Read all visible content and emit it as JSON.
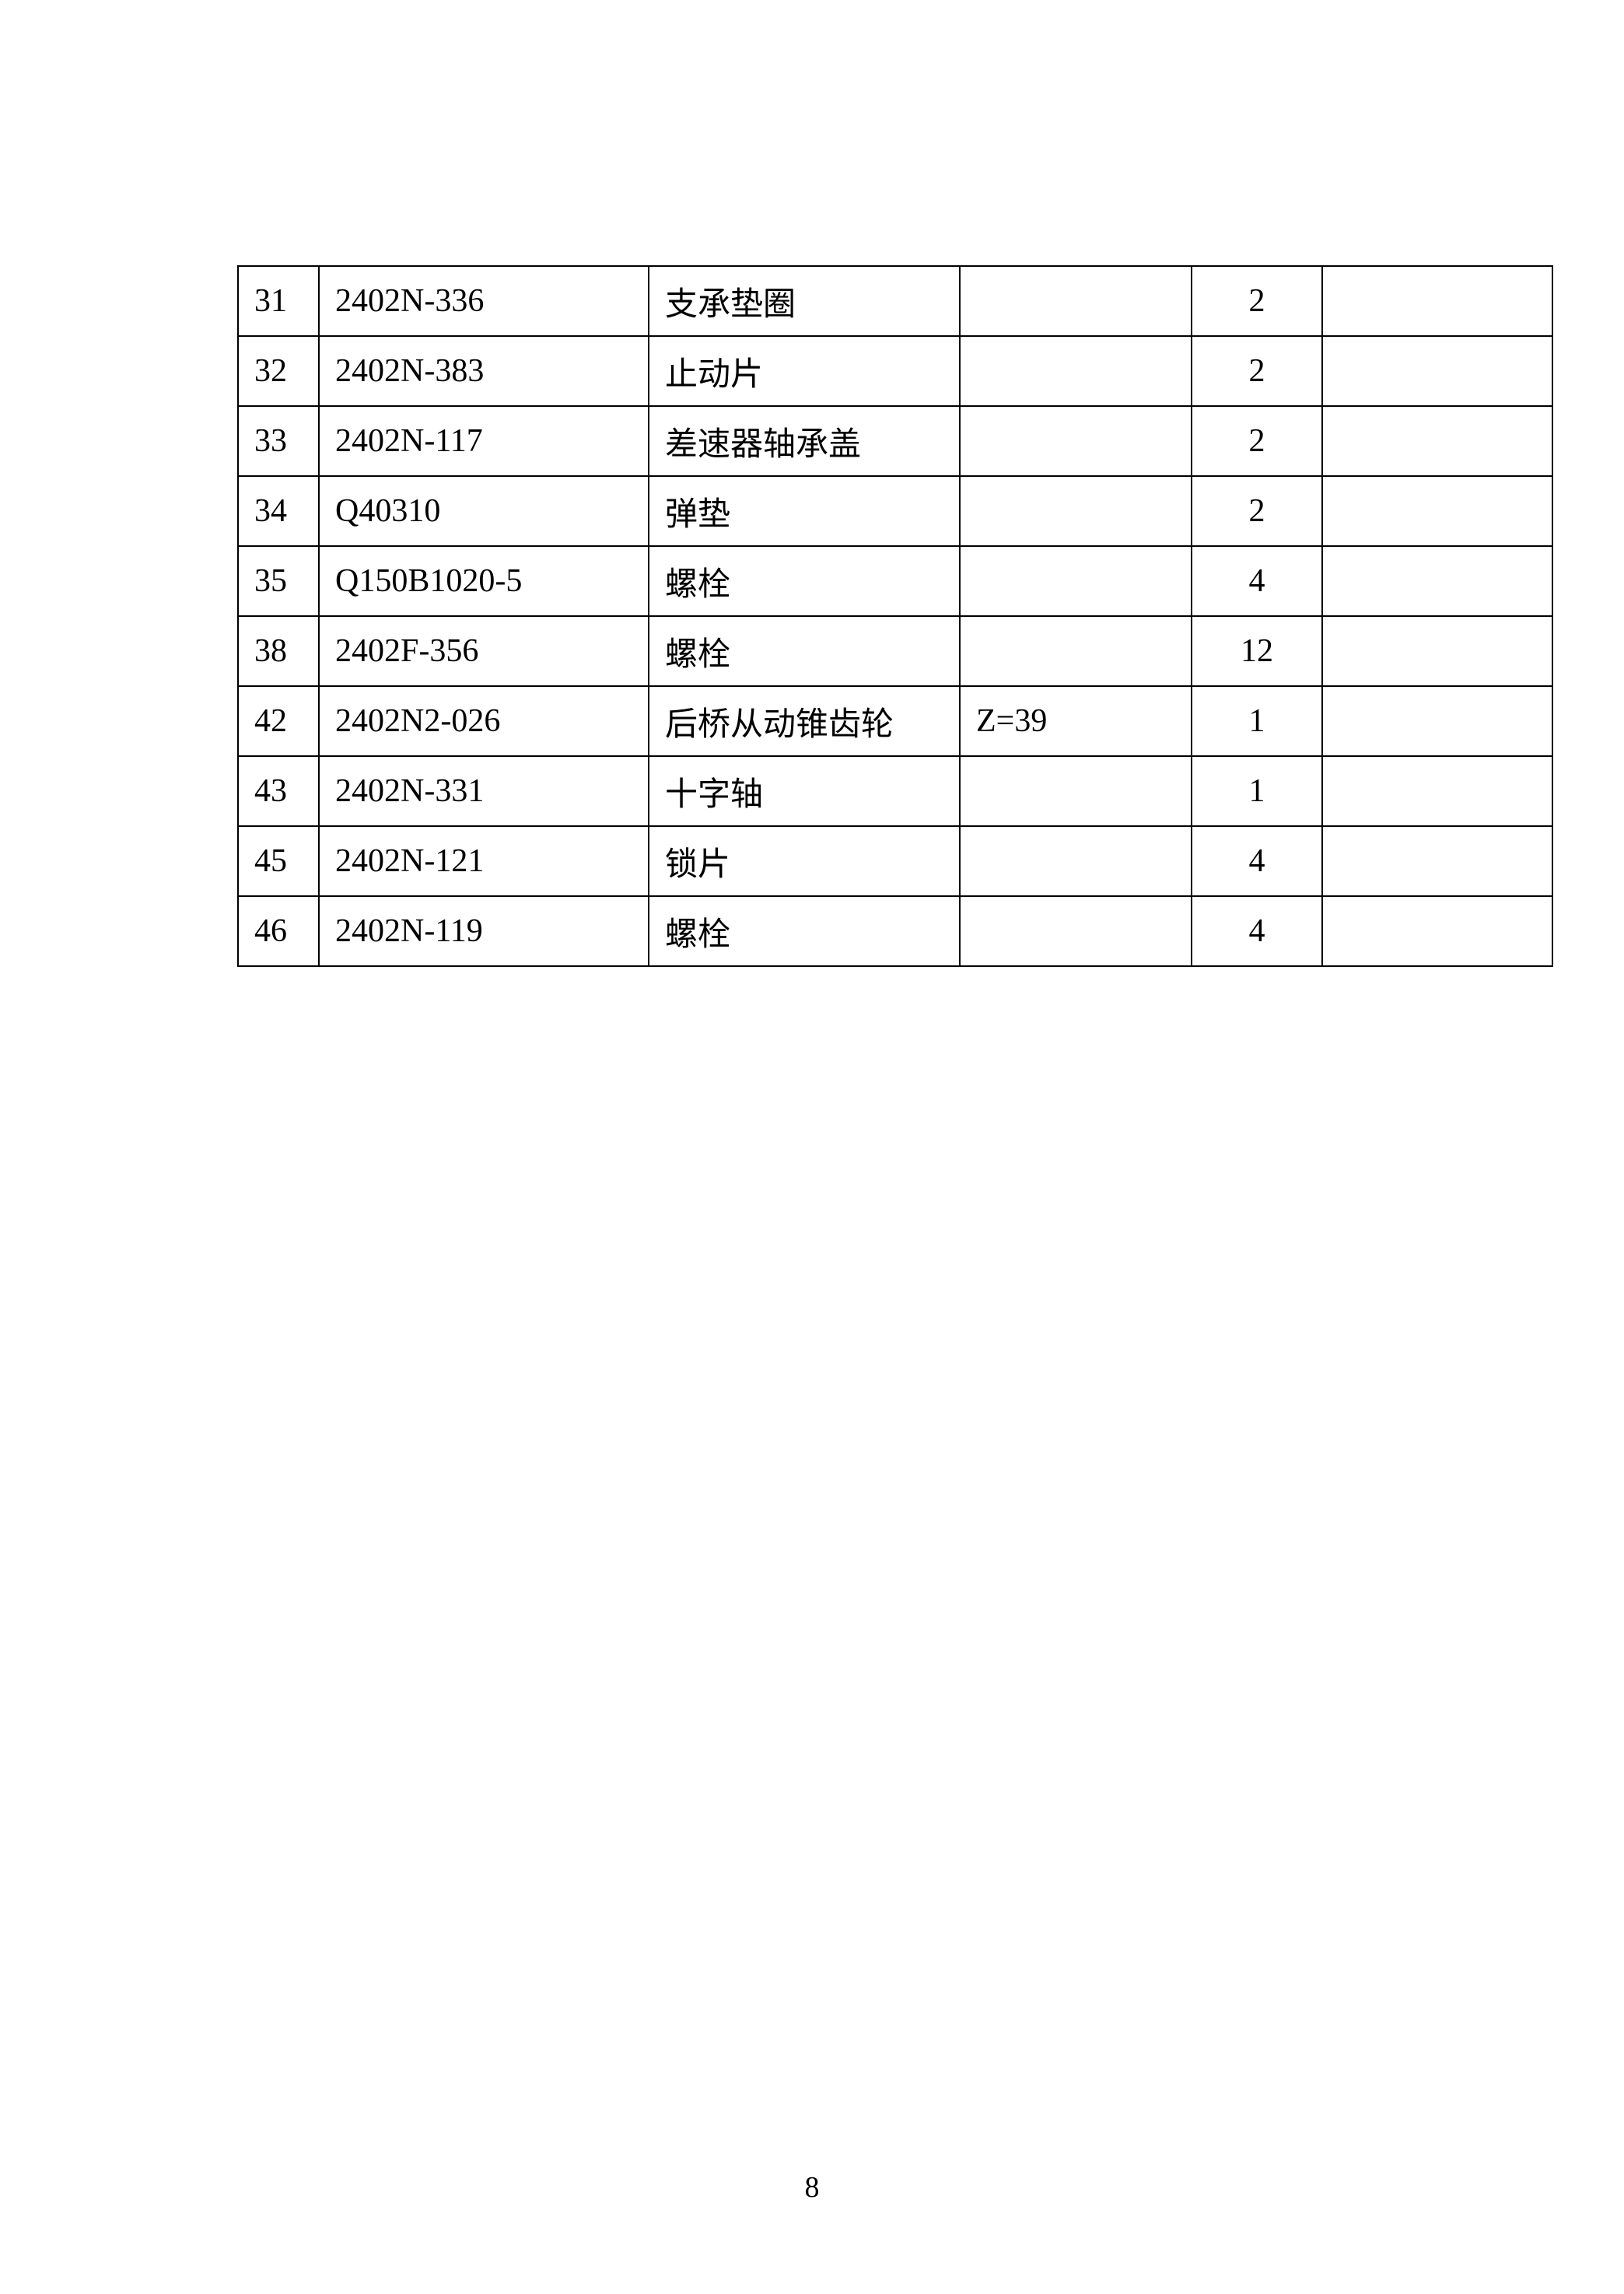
{
  "parts_table": {
    "rows": [
      {
        "no": "31",
        "code": "2402N-336",
        "name": "支承垫圈",
        "note": "",
        "qty": "2",
        "remark": ""
      },
      {
        "no": "32",
        "code": "2402N-383",
        "name": "止动片",
        "note": "",
        "qty": "2",
        "remark": ""
      },
      {
        "no": "33",
        "code": "2402N-117",
        "name": "差速器轴承盖",
        "note": "",
        "qty": "2",
        "remark": ""
      },
      {
        "no": "34",
        "code": "Q40310",
        "name": "弹垫",
        "note": "",
        "qty": "2",
        "remark": ""
      },
      {
        "no": "35",
        "code": "Q150B1020-5",
        "name": "螺栓",
        "note": "",
        "qty": "4",
        "remark": ""
      },
      {
        "no": "38",
        "code": "2402F-356",
        "name": "螺栓",
        "note": "",
        "qty": "12",
        "remark": ""
      },
      {
        "no": "42",
        "code": "2402N2-026",
        "name": "后桥从动锥齿轮",
        "note": "Z=39",
        "qty": "1",
        "remark": ""
      },
      {
        "no": "43",
        "code": "2402N-331",
        "name": "十字轴",
        "note": "",
        "qty": "1",
        "remark": ""
      },
      {
        "no": "45",
        "code": "2402N-121",
        "name": "锁片",
        "note": "",
        "qty": "4",
        "remark": ""
      },
      {
        "no": "46",
        "code": "2402N-119",
        "name": "螺栓",
        "note": "",
        "qty": "4",
        "remark": ""
      }
    ]
  },
  "page_number": "8"
}
